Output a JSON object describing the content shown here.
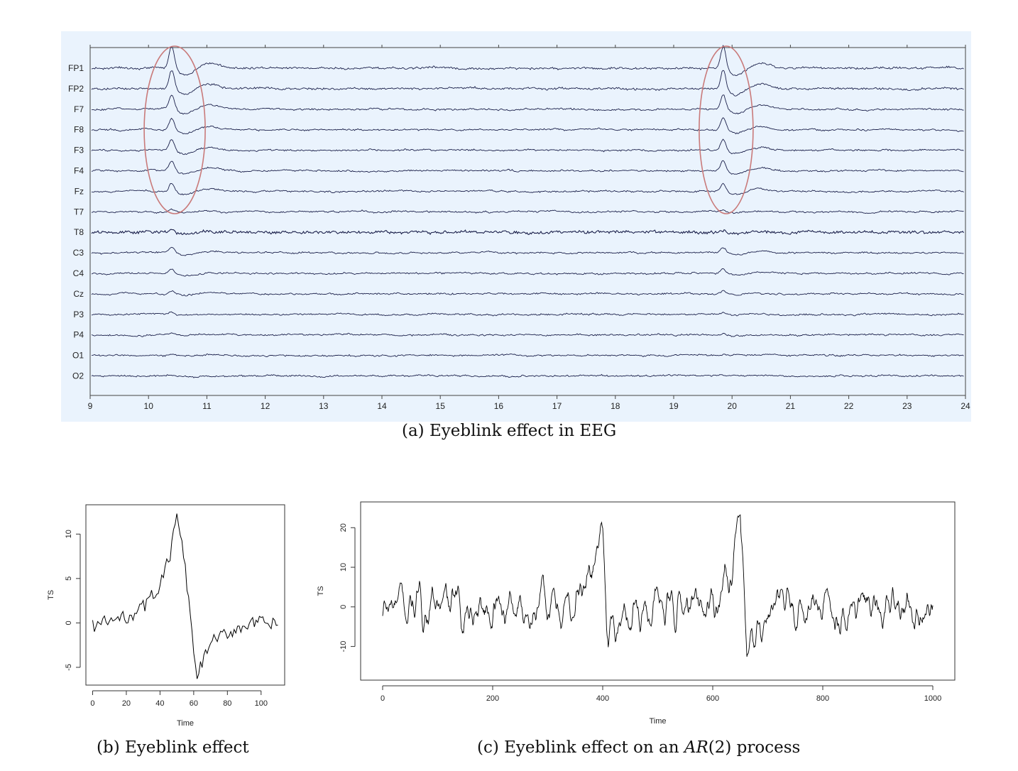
{
  "chart_data": [
    {
      "type": "line",
      "panel": "a",
      "caption": "(a) Eyeblink effect in EEG",
      "channels": [
        "FP1",
        "FP2",
        "F7",
        "F8",
        "F3",
        "F4",
        "Fz",
        "T7",
        "T8",
        "C3",
        "C4",
        "Cz",
        "P3",
        "P4",
        "O1",
        "O2"
      ],
      "x_ticks": [
        9,
        10,
        11,
        12,
        13,
        14,
        15,
        16,
        17,
        18,
        19,
        20,
        21,
        22,
        23,
        24
      ],
      "xlim": [
        9,
        24
      ],
      "blinks": [
        10.4,
        19.85
      ],
      "blink_amplitude": [
        1.0,
        0.85,
        0.65,
        0.55,
        0.5,
        0.45,
        0.4,
        0.1,
        0.12,
        0.25,
        0.2,
        0.15,
        0.1,
        0.08,
        0.05,
        0.04
      ],
      "annotation": "ellipses around eyeblink artifacts at ~10.4 s and ~19.9 s",
      "colors": {
        "trace": "#1a1f4a",
        "ellipse": "#c97a7a",
        "panel_bg": "#eaf3fd"
      }
    },
    {
      "type": "line",
      "panel": "b",
      "caption_prefix": "(b) ",
      "caption": "Eyeblink effect",
      "xlabel": "Time",
      "ylabel": "TS",
      "x_ticks": [
        0,
        20,
        40,
        60,
        80,
        100
      ],
      "y_ticks": [
        -5,
        0,
        5,
        10
      ],
      "xlim": [
        -4,
        114
      ],
      "ylim": [
        -7,
        13.3
      ],
      "key_points": [
        [
          0,
          -0.3
        ],
        [
          10,
          0.2
        ],
        [
          20,
          0.6
        ],
        [
          30,
          1.8
        ],
        [
          40,
          4.2
        ],
        [
          46,
          7.6
        ],
        [
          50,
          12.3
        ],
        [
          55,
          6.0
        ],
        [
          60,
          -3.0
        ],
        [
          62,
          -6.3
        ],
        [
          66,
          -4.0
        ],
        [
          70,
          -2.2
        ],
        [
          80,
          -1.2
        ],
        [
          90,
          -0.2
        ],
        [
          100,
          0.0
        ],
        [
          110,
          -0.3
        ]
      ],
      "noise": 0.5
    },
    {
      "type": "line",
      "panel": "c",
      "caption_prefix": "(c) ",
      "caption_mid": "Eyeblink effect on an ",
      "caption_math": "AR",
      "caption_suffix": "(2) process",
      "xlabel": "Time",
      "ylabel": "TS",
      "x_ticks": [
        0,
        200,
        400,
        600,
        800,
        1000
      ],
      "y_ticks": [
        -10,
        0,
        10,
        20
      ],
      "xlim": [
        -40,
        1040
      ],
      "ylim": [
        -18.5,
        26.5
      ],
      "blinks": [
        {
          "peak_x": 400,
          "peak_y": 25.0,
          "trough_x": 410,
          "trough_y": -10.0
        },
        {
          "peak_x": 650,
          "peak_y": 24.0,
          "trough_x": 662,
          "trough_y": -16.5
        }
      ],
      "series_range": [
        0,
        1000
      ]
    }
  ]
}
